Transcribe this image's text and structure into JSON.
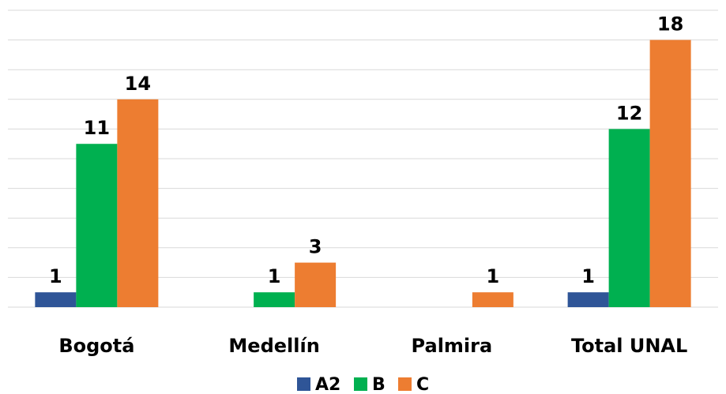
{
  "chart_data": {
    "type": "bar",
    "title": "",
    "xlabel": "",
    "ylabel": "",
    "categories": [
      "Bogotá",
      "Medellín",
      "Palmira",
      "Total UNAL"
    ],
    "series": [
      {
        "name": "A2",
        "color": "#2f5597",
        "values": [
          1,
          null,
          null,
          1
        ]
      },
      {
        "name": "B",
        "color": "#00b050",
        "values": [
          11,
          1,
          null,
          12
        ]
      },
      {
        "name": "C",
        "color": "#ed7d31",
        "values": [
          14,
          3,
          1,
          18
        ]
      }
    ],
    "ylim": [
      0,
      20
    ],
    "grid": true,
    "legend": "bottom"
  }
}
